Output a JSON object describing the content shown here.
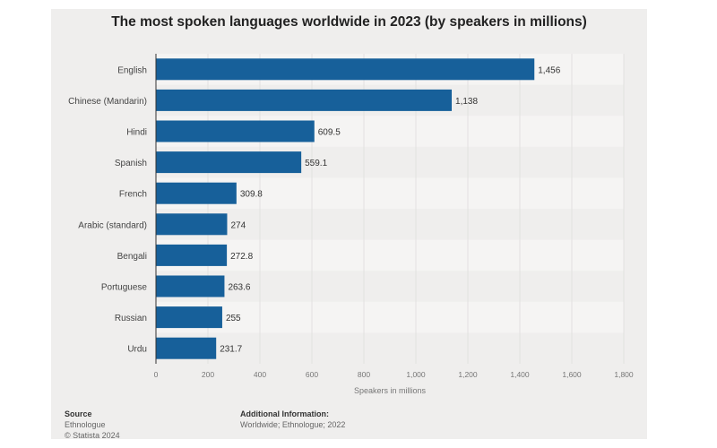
{
  "chart_data": {
    "type": "bar",
    "orientation": "horizontal",
    "title": "The most spoken languages worldwide in 2023 (by speakers in millions)",
    "xlabel": "Speakers in millions",
    "categories": [
      "English",
      "Chinese (Mandarin)",
      "Hindi",
      "Spanish",
      "French",
      "Arabic (standard)",
      "Bengali",
      "Portuguese",
      "Russian",
      "Urdu"
    ],
    "values": [
      1456,
      1138,
      609.5,
      559.1,
      309.8,
      274,
      272.8,
      263.6,
      255,
      231.7
    ],
    "value_labels": [
      "1,456",
      "1,138",
      "609.5",
      "559.1",
      "309.8",
      "274",
      "272.8",
      "263.6",
      "255",
      "231.7"
    ],
    "xlim": [
      0,
      1800
    ],
    "ticks": [
      "0",
      "200",
      "400",
      "600",
      "800",
      "1,000",
      "1,200",
      "1,400",
      "1,600",
      "1,800"
    ],
    "grid": true,
    "bar_color": "#17609a"
  },
  "footer": {
    "source_label": "Source",
    "source": "Ethnologue",
    "copyright": "© Statista 2024",
    "info_label": "Additional Information:",
    "info": "Worldwide; Ethnologue; 2022"
  }
}
